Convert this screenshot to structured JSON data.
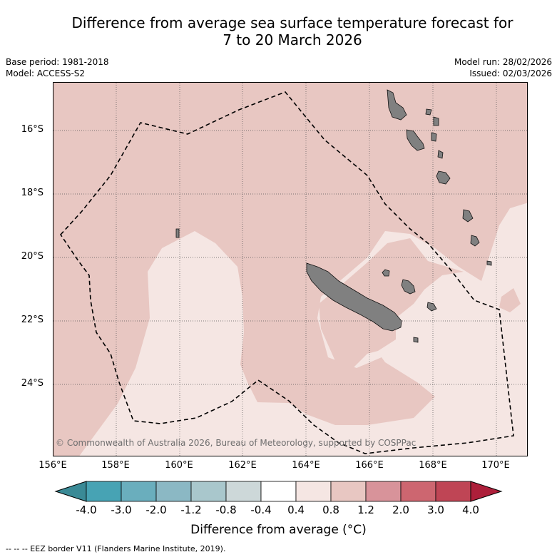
{
  "title": {
    "line1": "Difference from average sea surface temperature forecast for",
    "line2": "7 to 20 March 2026"
  },
  "meta": {
    "base_period": "Base period: 1981-2018",
    "model": "Model: ACCESS-S2",
    "model_run": "Model run: 28/02/2026",
    "issued": "Issued: 02/03/2026"
  },
  "map": {
    "lat_labels": [
      "16°S",
      "18°S",
      "20°S",
      "22°S",
      "24°S"
    ],
    "lon_labels": [
      "156°E",
      "158°E",
      "160°E",
      "162°E",
      "164°E",
      "166°E",
      "168°E",
      "170°E"
    ],
    "copyright": "© Commonwealth of Australia 2026, Bureau of Meteorology, supported by COSPPac",
    "colors": {
      "warm_0_4_0_8": "#f5e6e3",
      "warm_0_8_1_2": "#e8c7c2",
      "land": "#808080",
      "eez": "#000000"
    }
  },
  "colorbar": {
    "labels": [
      "-4.0",
      "-3.0",
      "-2.0",
      "-1.2",
      "-0.8",
      "-0.4",
      "0.4",
      "0.8",
      "1.2",
      "2.0",
      "3.0",
      "4.0"
    ],
    "colors": [
      "#3a8a96",
      "#47a3b4",
      "#6aaebd",
      "#8bb8c4",
      "#a9c7cc",
      "#cdd8d9",
      "#ffffff",
      "#f5e6e3",
      "#e8c7c2",
      "#d8939a",
      "#cd6670",
      "#bf4555",
      "#ad1f3a"
    ],
    "title": "Difference from average (°C)"
  },
  "footer": "-- -- -- EEZ border V11 (Flanders Marine Institute, 2019)."
}
